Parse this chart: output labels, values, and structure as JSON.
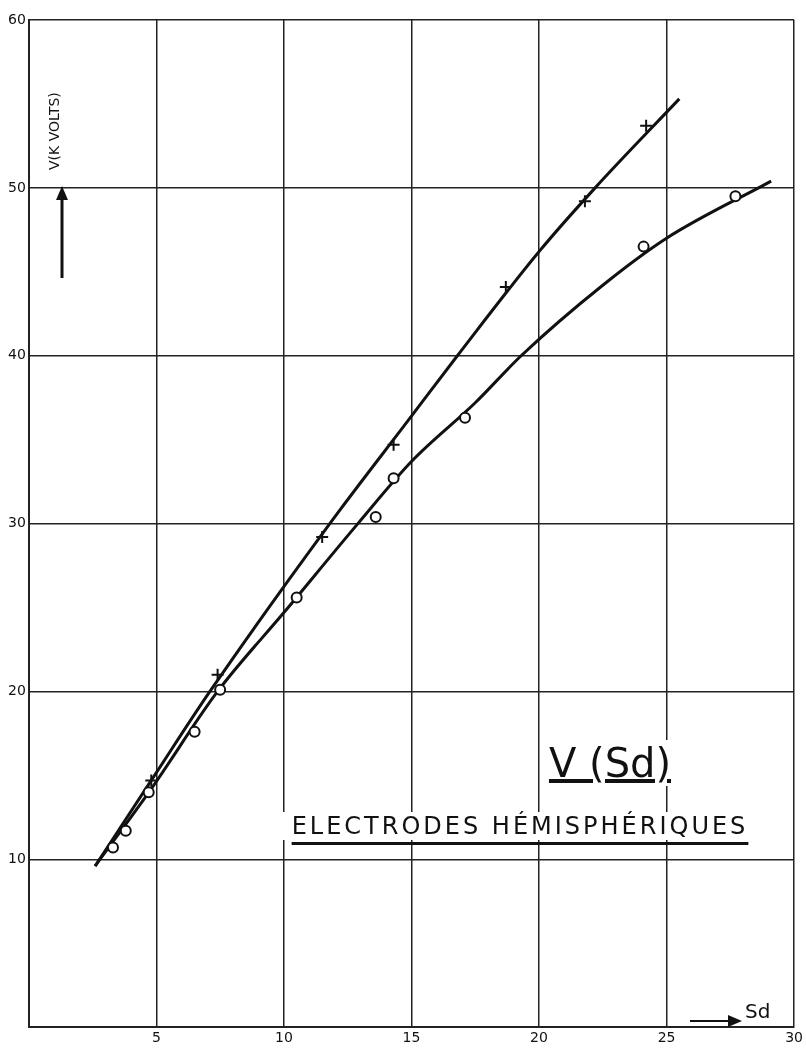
{
  "chart_data": {
    "type": "scatter",
    "title": "V (Sd)",
    "subtitle": "ELECTRODES HÉMISPHÉRIQUES",
    "xlabel": "Sd",
    "ylabel": "V(K VOLTS)",
    "xlim": [
      0,
      30
    ],
    "ylim": [
      0,
      60
    ],
    "xticks": [
      5,
      10,
      15,
      20,
      25,
      30
    ],
    "yticks": [
      10,
      20,
      30,
      40,
      50,
      60
    ],
    "grid": true,
    "legend": false,
    "series": [
      {
        "type": "scatter",
        "marker": "cross",
        "color": "#111111",
        "x": [
          4.8,
          7.4,
          11.5,
          14.3,
          18.7,
          21.8,
          24.2
        ],
        "values": [
          14.7,
          21.0,
          29.2,
          34.7,
          44.1,
          49.2,
          53.7
        ]
      },
      {
        "type": "scatter",
        "marker": "circle",
        "color": "#111111",
        "x": [
          3.3,
          3.8,
          4.7,
          6.5,
          7.5,
          10.5,
          13.6,
          14.3,
          17.1,
          24.1,
          27.7
        ],
        "values": [
          10.7,
          11.7,
          14.0,
          17.6,
          20.1,
          25.6,
          30.4,
          32.7,
          36.3,
          46.5,
          49.5
        ]
      },
      {
        "type": "line",
        "marker": "none",
        "color": "#111111",
        "x": [
          2.6,
          4.8,
          7.1,
          11.8,
          15,
          16.8,
          20,
          22.2,
          25.5
        ],
        "values": [
          9.6,
          14.7,
          20,
          30,
          36.4,
          40,
          46.2,
          50,
          55.3
        ]
      },
      {
        "type": "line",
        "marker": "none",
        "color": "#111111",
        "x": [
          2.6,
          4.8,
          7.4,
          10,
          12.9,
          15,
          17.5,
          19.3,
          22.5,
          25,
          29.1
        ],
        "values": [
          9.6,
          14.2,
          20,
          24.7,
          30,
          33.7,
          37.2,
          40,
          44.2,
          47,
          50.4
        ]
      }
    ]
  }
}
